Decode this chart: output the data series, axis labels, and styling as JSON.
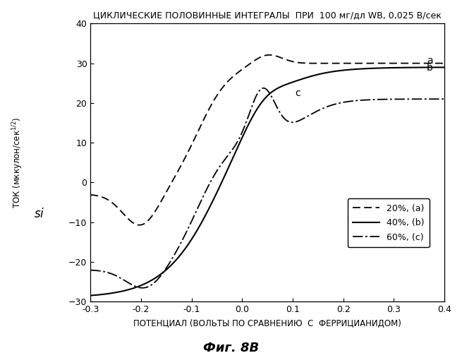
{
  "title": "ЦИКЛИЧЕСКИЕ ПОЛОВИННЫЕ ИНТЕГРАЛЫ  ПРИ  100 мг/дл WB, 0,025 В/сек",
  "xlabel": "ПОТЕНЦИАЛ (ВОЛЬТЫ ПО СРАВНЕНИЮ  С  ФЕРРИЦИАНИДОМ)",
  "ylabel": "ТОК (мккулон/сек¹²)",
  "caption": "Фиг. 8В",
  "xlim": [
    -0.3,
    0.4
  ],
  "ylim": [
    -30,
    40
  ],
  "xticks": [
    -0.3,
    -0.2,
    -0.1,
    0.0,
    0.1,
    0.2,
    0.3,
    0.4
  ],
  "yticks": [
    -30,
    -20,
    -10,
    0,
    10,
    20,
    30,
    40
  ],
  "legend_entries": [
    "20%, (a)",
    "40%, (b)",
    "60%, (c)"
  ],
  "curve_a_label": "a",
  "curve_b_label": "b",
  "curve_c_label": "c",
  "bg_color": "#ffffff",
  "line_color": "#000000"
}
